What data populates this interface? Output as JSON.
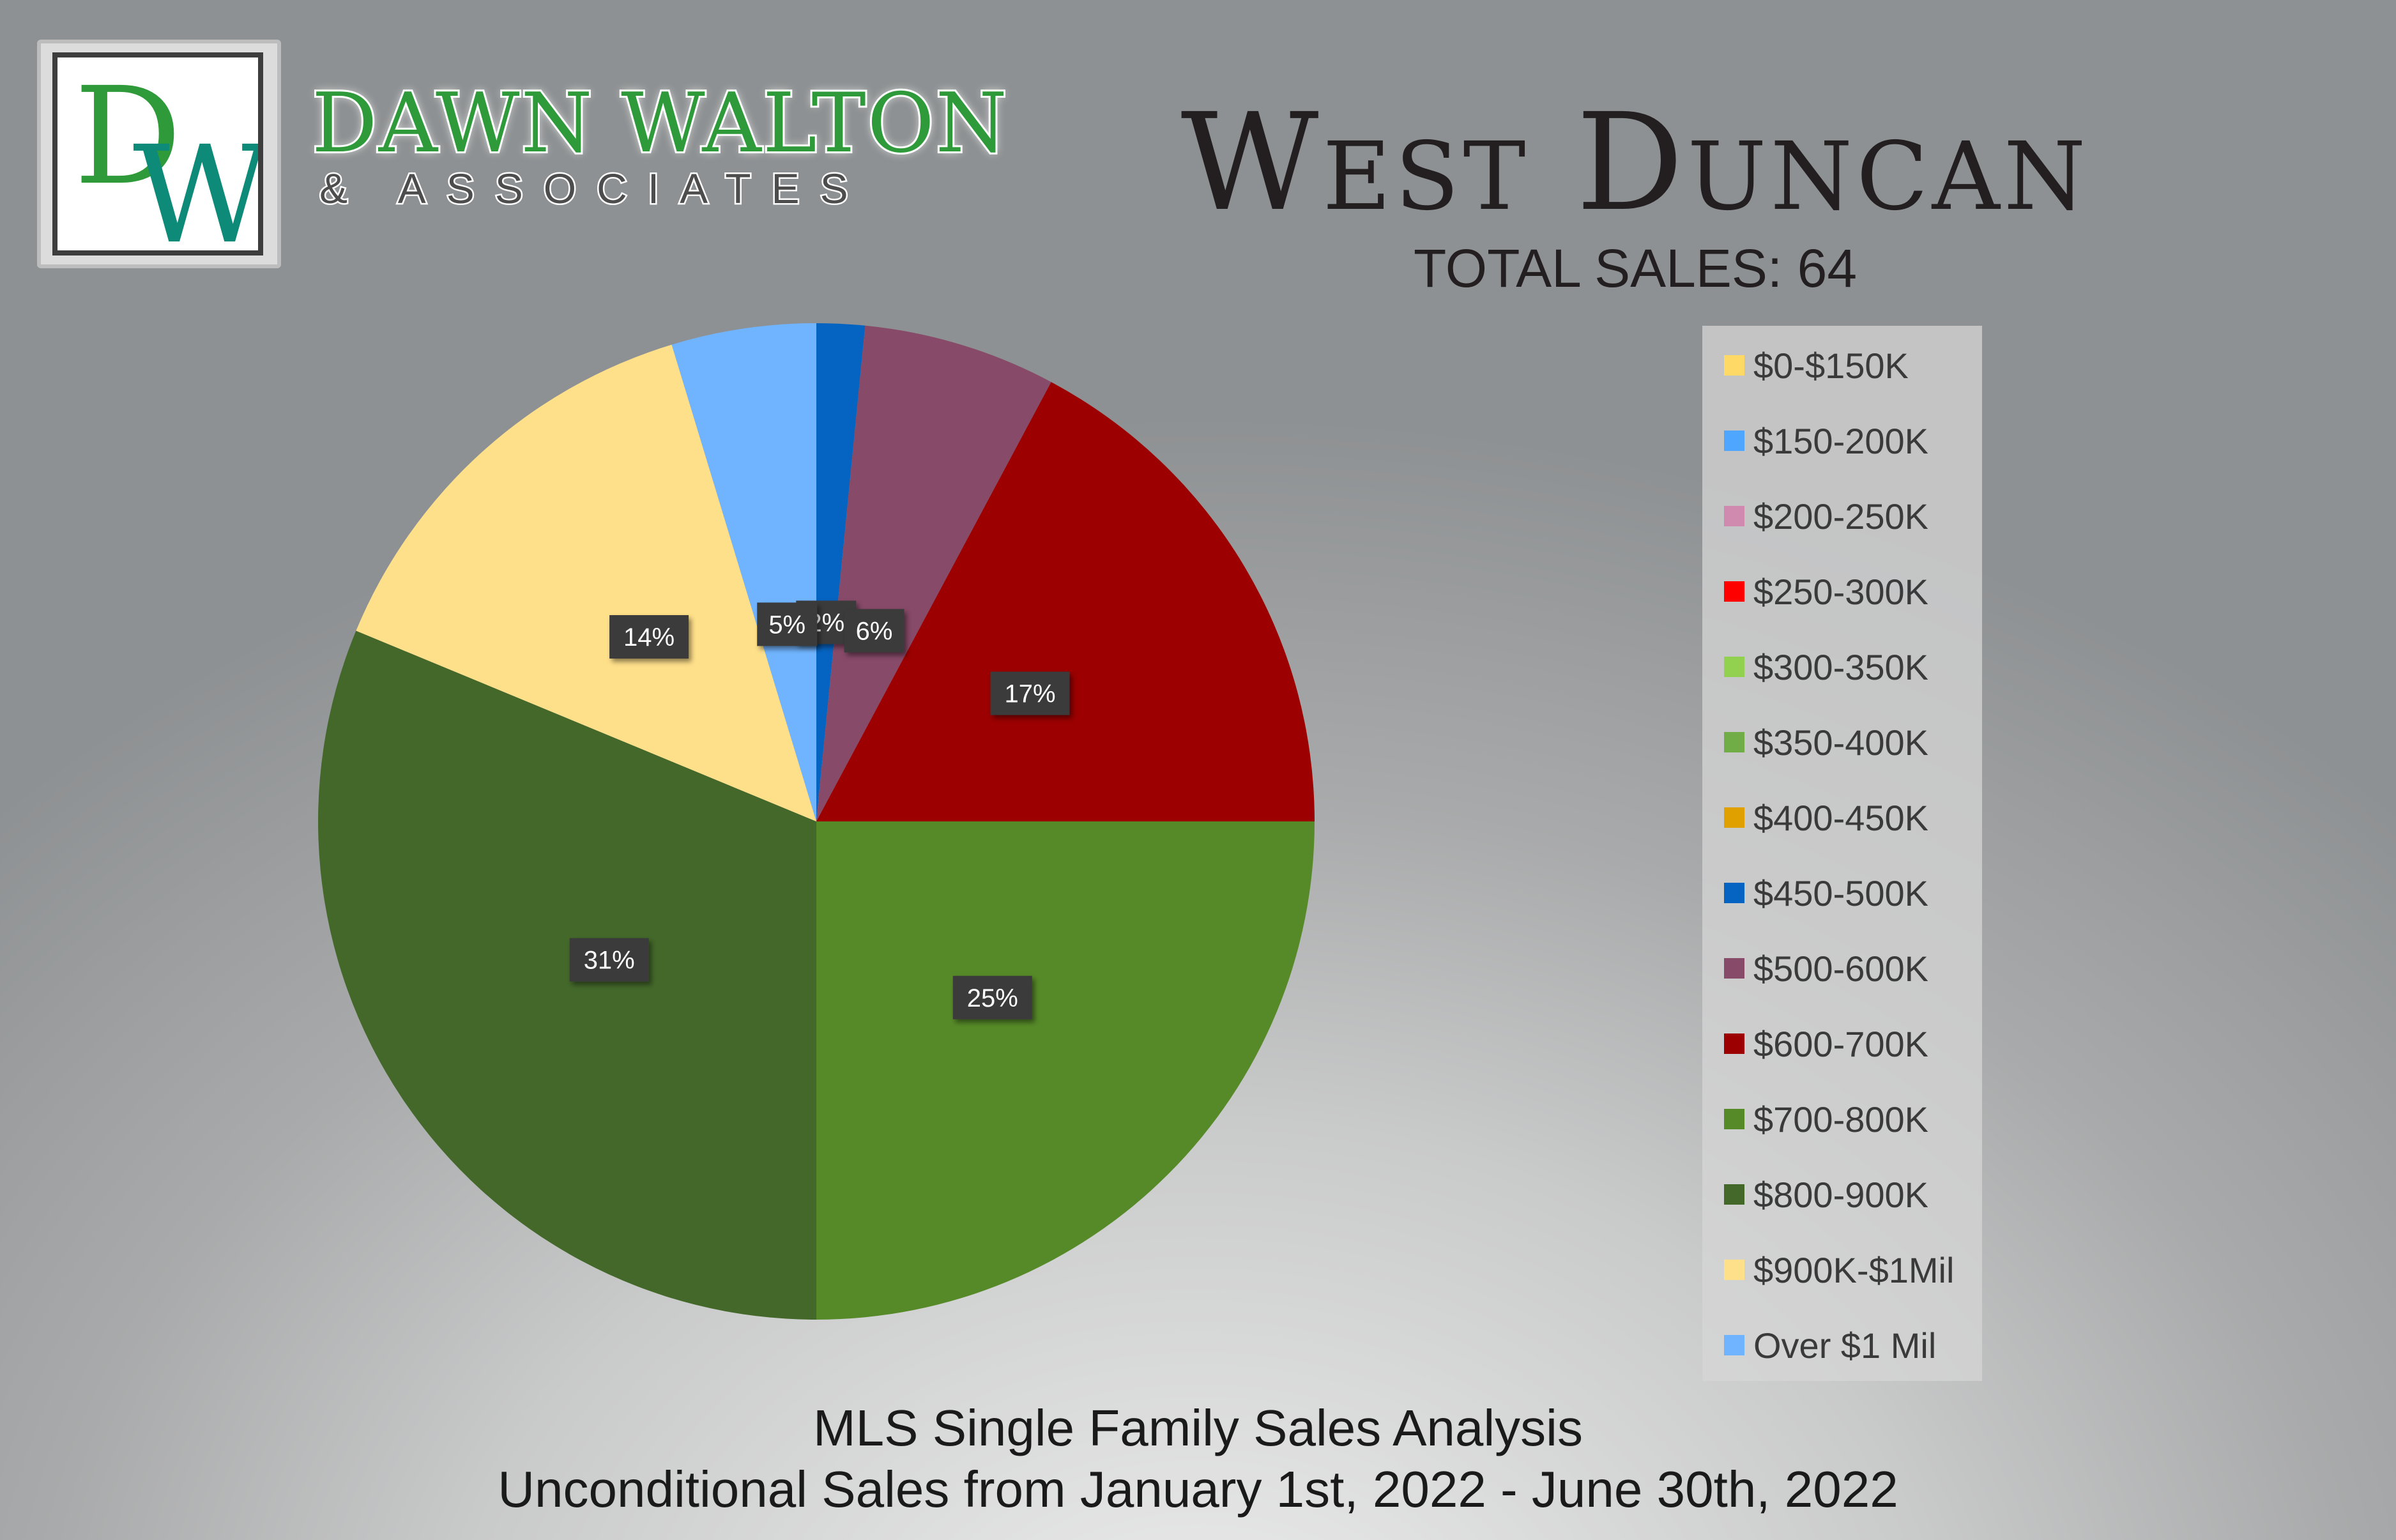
{
  "brand": {
    "logo_letters": "DW",
    "name": "DAWN WALTON",
    "subtitle": "& ASSOCIATES"
  },
  "header": {
    "title": "West Duncan",
    "total_sales": "TOTAL SALES: 64"
  },
  "footer": {
    "line1": "MLS Single Family Sales Analysis",
    "line2": "Unconditional Sales from January 1st, 2022 - June 30th, 2022"
  },
  "colors": {
    "title_text": "#231f20",
    "logo_green": "#2f9a3a",
    "logo_teal": "#0e8a78"
  },
  "chart_data": {
    "type": "pie",
    "title": "",
    "legend_position": "right",
    "total": 64,
    "slices": [
      {
        "label": "$0-$150K",
        "value": 0,
        "percent_label": "",
        "color": "#ffd966"
      },
      {
        "label": "$150-200K",
        "value": 0,
        "percent_label": "",
        "color": "#4ea6ff"
      },
      {
        "label": "$200-250K",
        "value": 0,
        "percent_label": "",
        "color": "#d08ab0"
      },
      {
        "label": "$250-300K",
        "value": 0,
        "percent_label": "",
        "color": "#ff0000"
      },
      {
        "label": "$300-350K",
        "value": 0,
        "percent_label": "",
        "color": "#92d050"
      },
      {
        "label": "$350-400K",
        "value": 0,
        "percent_label": "",
        "color": "#70ad47"
      },
      {
        "label": "$400-450K",
        "value": 0,
        "percent_label": "",
        "color": "#e0a000"
      },
      {
        "label": "$450-500K",
        "value": 1,
        "percent_label": "2%",
        "color": "#0563c1"
      },
      {
        "label": "$500-600K",
        "value": 4,
        "percent_label": "6%",
        "color": "#874a68"
      },
      {
        "label": "$600-700K",
        "value": 11,
        "percent_label": "17%",
        "color": "#9c0000"
      },
      {
        "label": "$700-800K",
        "value": 16,
        "percent_label": "25%",
        "color": "#568a28"
      },
      {
        "label": "$800-900K",
        "value": 20,
        "percent_label": "31%",
        "color": "#43682a"
      },
      {
        "label": "$900K-$1Mil",
        "value": 9,
        "percent_label": "14%",
        "color": "#ffe08a"
      },
      {
        "label": "Over $1 Mil",
        "value": 3,
        "percent_label": "5%",
        "color": "#70b4ff"
      }
    ]
  }
}
